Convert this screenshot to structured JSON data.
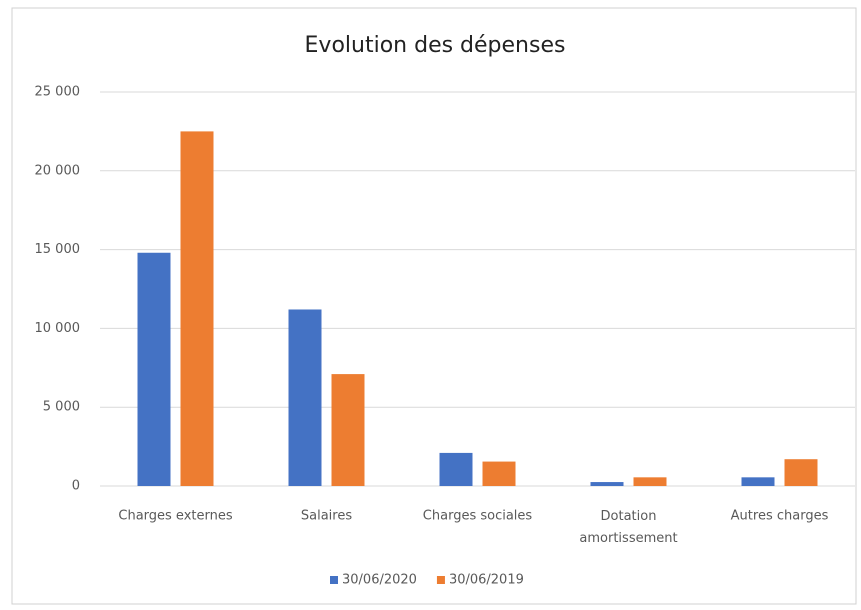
{
  "chart_data": {
    "type": "bar",
    "title": "Evolution des dépenses",
    "categories": [
      "Charges externes",
      "Salaires",
      "Charges sociales",
      "Dotation amortissement",
      "Autres charges"
    ],
    "series": [
      {
        "name": "30/06/2020",
        "color": "#4472c4",
        "values": [
          14800,
          11200,
          2100,
          250,
          550
        ]
      },
      {
        "name": "30/06/2019",
        "color": "#ed7d31",
        "values": [
          22500,
          7100,
          1550,
          550,
          1700
        ]
      }
    ],
    "ylim": [
      0,
      25000
    ],
    "yticks": [
      0,
      {
        "value": 5000,
        "label": "5 000"
      },
      {
        "value": 10000,
        "label": "10 000"
      },
      {
        "value": 15000,
        "label": "15 000"
      },
      {
        "value": 20000,
        "label": "20 000"
      },
      {
        "value": 25000,
        "label": "25 000"
      }
    ],
    "grid": true,
    "legend": "bottom"
  }
}
